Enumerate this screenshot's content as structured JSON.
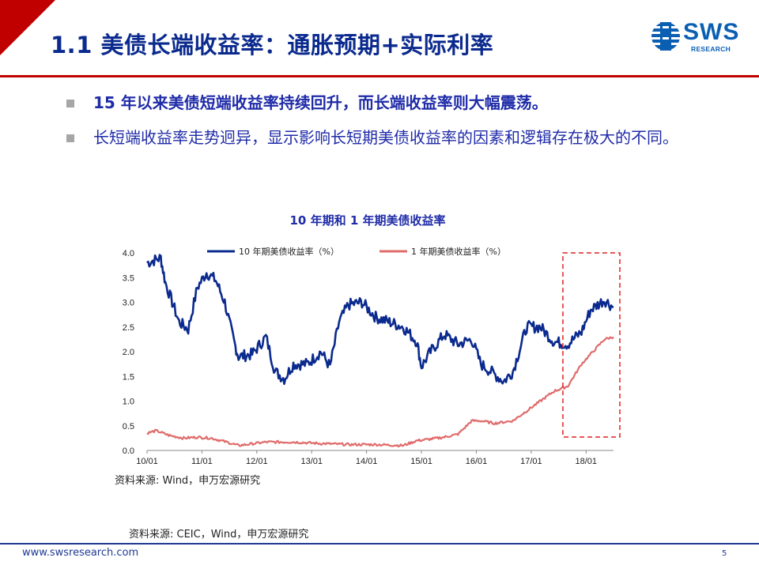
{
  "header": {
    "title": "1.1 美债长端收益率：通胀预期+实际利率",
    "logo_text": "SWS",
    "logo_sub": "RESEARCH"
  },
  "bullets": [
    "15 年以来美债短端收益率持续回升，而长端收益率则大幅震荡。",
    "长短端收益率走势迥异，显示影响长短期美债收益率的因素和逻辑存在极大的不同。"
  ],
  "chart_data": {
    "type": "line",
    "title": "10 年期和 1 年期美债收益率",
    "x_ticks": [
      "10/01",
      "11/01",
      "12/01",
      "13/01",
      "14/01",
      "15/01",
      "16/01",
      "17/01",
      "18/01"
    ],
    "y_ticks": [
      "0.0",
      "0.5",
      "1.0",
      "1.5",
      "2.0",
      "2.5",
      "3.0",
      "3.5",
      "4.0"
    ],
    "ylim": [
      0,
      4
    ],
    "x_range": [
      "2010-01",
      "2018-07"
    ],
    "highlight": {
      "from": "2017-10",
      "to": "2018-07",
      "style": "red dashed box"
    },
    "series": [
      {
        "name": "10 年期美债收益率（%）",
        "color": "#0b2a8e",
        "points": [
          [
            "2010-01",
            3.8
          ],
          [
            "2010-04",
            3.9
          ],
          [
            "2010-05",
            3.4
          ],
          [
            "2010-08",
            2.6
          ],
          [
            "2010-10",
            2.45
          ],
          [
            "2010-12",
            3.3
          ],
          [
            "2011-02",
            3.6
          ],
          [
            "2011-04",
            3.45
          ],
          [
            "2011-06",
            3.0
          ],
          [
            "2011-08",
            2.2
          ],
          [
            "2011-09",
            1.9
          ],
          [
            "2011-12",
            1.95
          ],
          [
            "2012-03",
            2.3
          ],
          [
            "2012-05",
            1.6
          ],
          [
            "2012-07",
            1.45
          ],
          [
            "2012-09",
            1.75
          ],
          [
            "2012-12",
            1.75
          ],
          [
            "2013-03",
            2.0
          ],
          [
            "2013-05",
            1.7
          ],
          [
            "2013-07",
            2.6
          ],
          [
            "2013-09",
            2.95
          ],
          [
            "2013-12",
            3.0
          ],
          [
            "2014-03",
            2.7
          ],
          [
            "2014-06",
            2.6
          ],
          [
            "2014-09",
            2.5
          ],
          [
            "2014-12",
            2.2
          ],
          [
            "2015-01",
            1.7
          ],
          [
            "2015-03",
            2.0
          ],
          [
            "2015-06",
            2.35
          ],
          [
            "2015-09",
            2.15
          ],
          [
            "2015-12",
            2.25
          ],
          [
            "2016-02",
            1.75
          ],
          [
            "2016-07",
            1.4
          ],
          [
            "2016-09",
            1.6
          ],
          [
            "2016-12",
            2.5
          ],
          [
            "2017-03",
            2.5
          ],
          [
            "2017-06",
            2.2
          ],
          [
            "2017-09",
            2.15
          ],
          [
            "2017-12",
            2.4
          ],
          [
            "2018-02",
            2.85
          ],
          [
            "2018-05",
            3.05
          ],
          [
            "2018-07",
            2.9
          ]
        ]
      },
      {
        "name": "1 年期美债收益率（%）",
        "color": "#e06b6b",
        "points": [
          [
            "2010-01",
            0.35
          ],
          [
            "2010-03",
            0.4
          ],
          [
            "2010-06",
            0.3
          ],
          [
            "2010-09",
            0.25
          ],
          [
            "2010-12",
            0.27
          ],
          [
            "2011-03",
            0.25
          ],
          [
            "2011-06",
            0.18
          ],
          [
            "2011-09",
            0.1
          ],
          [
            "2012-03",
            0.17
          ],
          [
            "2012-09",
            0.17
          ],
          [
            "2013-03",
            0.14
          ],
          [
            "2013-09",
            0.12
          ],
          [
            "2014-03",
            0.12
          ],
          [
            "2014-09",
            0.1
          ],
          [
            "2014-12",
            0.2
          ],
          [
            "2015-03",
            0.23
          ],
          [
            "2015-06",
            0.27
          ],
          [
            "2015-09",
            0.33
          ],
          [
            "2015-12",
            0.6
          ],
          [
            "2016-02",
            0.6
          ],
          [
            "2016-05",
            0.55
          ],
          [
            "2016-09",
            0.6
          ],
          [
            "2016-12",
            0.8
          ],
          [
            "2017-03",
            1.0
          ],
          [
            "2017-06",
            1.2
          ],
          [
            "2017-09",
            1.3
          ],
          [
            "2017-12",
            1.75
          ],
          [
            "2018-03",
            2.05
          ],
          [
            "2018-05",
            2.25
          ],
          [
            "2018-07",
            2.3
          ]
        ]
      }
    ]
  },
  "sources": {
    "chart_source": "资料来源: Wind，申万宏源研究",
    "page_source": "资料来源: CEIC，Wind，申万宏源研究"
  },
  "footer": {
    "website": "www.swsresearch.com",
    "page_number": "5"
  }
}
